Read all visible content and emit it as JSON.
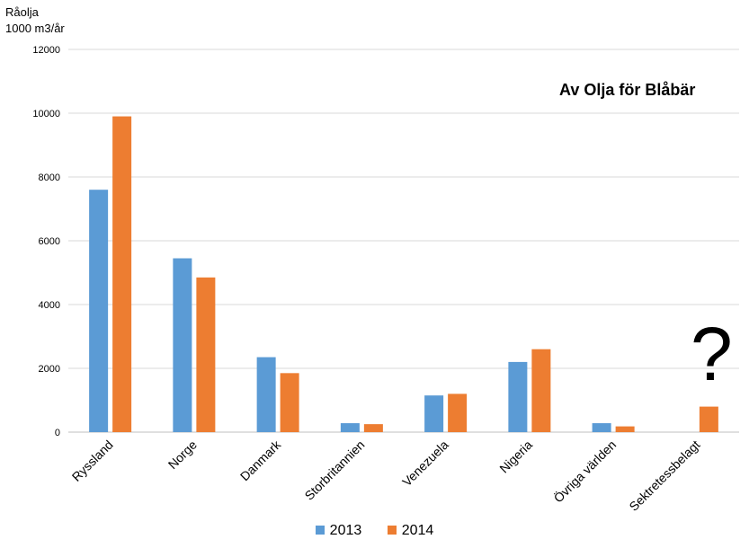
{
  "chart_data": {
    "type": "bar",
    "title": "Av Olja för Blåbär",
    "ylabel_lines": [
      "Råolja",
      "1000 m3/år"
    ],
    "xlabel": "",
    "ylim": [
      0,
      12000
    ],
    "yticks": [
      0,
      2000,
      4000,
      6000,
      8000,
      10000,
      12000
    ],
    "grid": true,
    "legend_position": "bottom",
    "categories": [
      "Ryssland",
      "Norge",
      "Danmark",
      "Storbritannien",
      "Venezuela",
      "Nigeria",
      "Övriga världen",
      "Sektretessbelagt"
    ],
    "series": [
      {
        "name": "2013",
        "color": "#5b9bd5",
        "values": [
          7600,
          5450,
          2350,
          280,
          1150,
          2200,
          280,
          null
        ]
      },
      {
        "name": "2014",
        "color": "#ed7d31",
        "values": [
          9900,
          4850,
          1850,
          250,
          1200,
          2600,
          180,
          800
        ]
      }
    ],
    "annotation": "?"
  }
}
